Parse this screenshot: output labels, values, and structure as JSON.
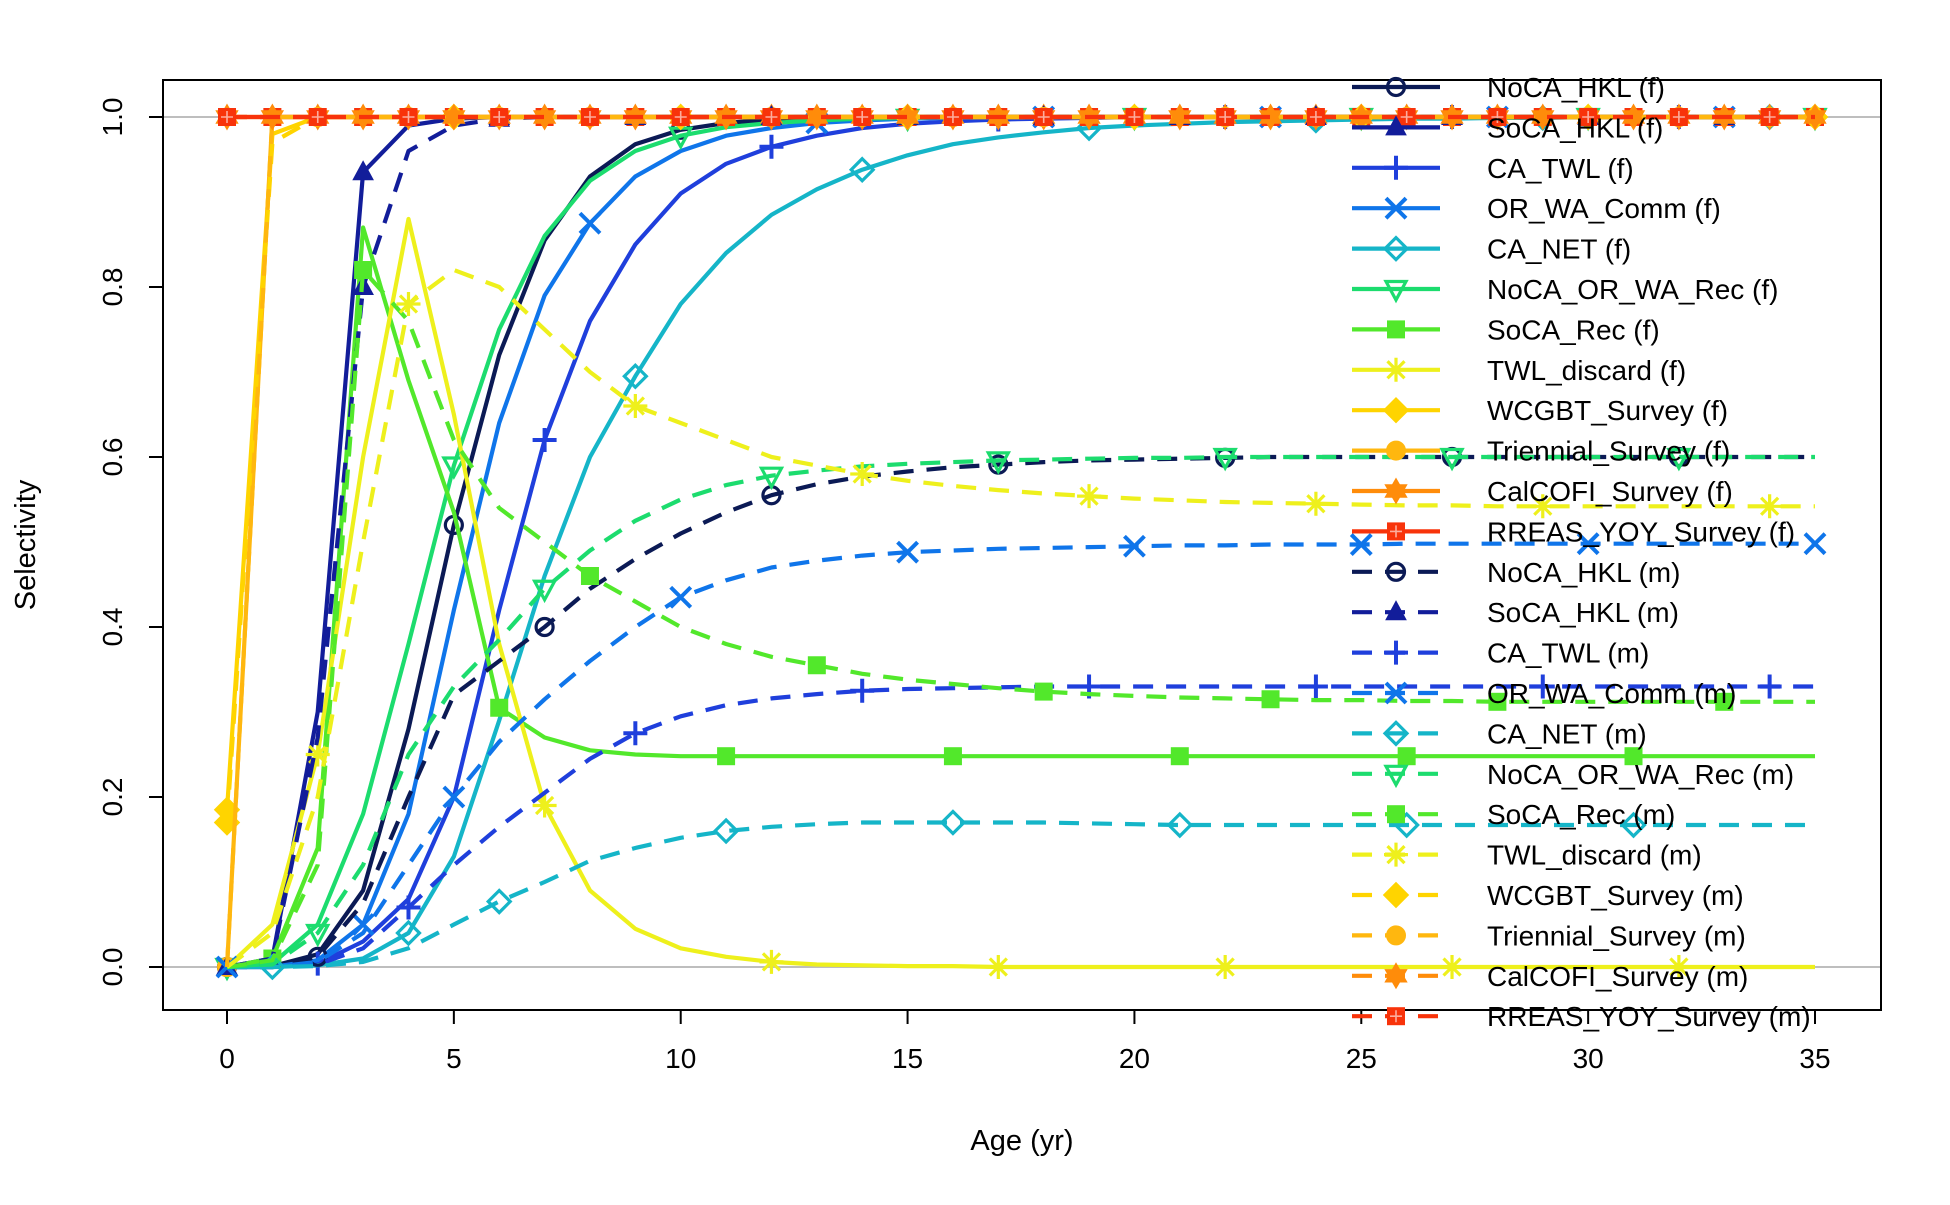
{
  "chart_data": {
    "type": "line",
    "title": "",
    "xlabel": "Age (yr)",
    "ylabel": "Selectivity",
    "xlim": [
      0,
      35
    ],
    "ylim": [
      0,
      1
    ],
    "x_ticks": [
      "0",
      "5",
      "10",
      "15",
      "20",
      "25",
      "30",
      "35"
    ],
    "y_ticks": [
      "0.0",
      "0.2",
      "0.4",
      "0.6",
      "0.8",
      "1.0"
    ],
    "reference_lines": [
      0,
      1
    ],
    "legend_position": "top-right",
    "x": [
      0,
      1,
      2,
      3,
      4,
      5,
      6,
      7,
      8,
      9,
      10,
      11,
      12,
      13,
      14,
      15,
      16,
      17,
      18,
      19,
      20,
      21,
      22,
      23,
      24,
      25,
      26,
      27,
      28,
      29,
      30,
      31,
      32,
      33,
      34,
      35
    ],
    "series": [
      {
        "name": "NoCA_HKL (f)",
        "color": "#0b1a55",
        "dash": "solid",
        "marker": "circle-open",
        "marker_every": 5,
        "marker_offset": 0,
        "values": [
          0,
          0.001,
          0.015,
          0.09,
          0.28,
          0.52,
          0.72,
          0.855,
          0.93,
          0.968,
          0.985,
          0.993,
          0.997,
          0.999,
          1,
          1,
          1,
          1,
          1,
          1,
          1,
          1,
          1,
          1,
          1,
          1,
          1,
          1,
          1,
          1,
          1,
          1,
          1,
          1,
          1,
          1
        ]
      },
      {
        "name": "SoCA_HKL (f)",
        "color": "#121d9a",
        "dash": "solid",
        "marker": "triangle-up",
        "marker_every": 3,
        "marker_offset": 0,
        "values": [
          0,
          0.01,
          0.3,
          0.935,
          0.99,
          0.998,
          1,
          1,
          1,
          1,
          1,
          1,
          1,
          1,
          1,
          1,
          1,
          1,
          1,
          1,
          1,
          1,
          1,
          1,
          1,
          1,
          1,
          1,
          1,
          1,
          1,
          1,
          1,
          1,
          1,
          1
        ]
      },
      {
        "name": "CA_TWL (f)",
        "color": "#1f3fdc",
        "dash": "solid",
        "marker": "plus",
        "marker_every": 5,
        "marker_offset": 2,
        "values": [
          0,
          0,
          0.004,
          0.03,
          0.08,
          0.2,
          0.42,
          0.62,
          0.76,
          0.85,
          0.91,
          0.945,
          0.965,
          0.978,
          0.987,
          0.992,
          0.995,
          0.997,
          0.998,
          0.999,
          1,
          1,
          1,
          1,
          1,
          1,
          1,
          1,
          1,
          1,
          1,
          1,
          1,
          1,
          1,
          1
        ]
      },
      {
        "name": "OR_WA_Comm (f)",
        "color": "#0f75ea",
        "dash": "solid",
        "marker": "x",
        "marker_every": 5,
        "marker_offset": 3,
        "values": [
          0,
          0,
          0.008,
          0.05,
          0.18,
          0.42,
          0.64,
          0.79,
          0.875,
          0.93,
          0.96,
          0.978,
          0.987,
          0.993,
          0.996,
          0.998,
          0.999,
          1,
          1,
          1,
          1,
          1,
          1,
          1,
          1,
          1,
          1,
          1,
          1,
          1,
          1,
          1,
          1,
          1,
          1,
          1
        ]
      },
      {
        "name": "CA_NET (f)",
        "color": "#15b5c8",
        "dash": "solid",
        "marker": "diamond-open",
        "marker_every": 5,
        "marker_offset": 4,
        "values": [
          0,
          0,
          0.002,
          0.01,
          0.04,
          0.13,
          0.29,
          0.46,
          0.6,
          0.695,
          0.78,
          0.84,
          0.885,
          0.915,
          0.938,
          0.955,
          0.968,
          0.976,
          0.982,
          0.987,
          0.99,
          0.992,
          0.994,
          0.995,
          0.996,
          0.997,
          0.998,
          0.998,
          0.999,
          0.999,
          1,
          1,
          1,
          1,
          1,
          1
        ]
      },
      {
        "name": "NoCA_OR_WA_Rec (f)",
        "color": "#1cdc6e",
        "dash": "solid",
        "marker": "triangle-down-open",
        "marker_every": 5,
        "marker_offset": 0,
        "values": [
          0,
          0.004,
          0.05,
          0.18,
          0.38,
          0.59,
          0.75,
          0.86,
          0.925,
          0.96,
          0.978,
          0.988,
          0.993,
          0.996,
          0.998,
          0.999,
          1,
          1,
          1,
          1,
          1,
          1,
          1,
          1,
          1,
          1,
          1,
          1,
          1,
          1,
          1,
          1,
          1,
          1,
          1,
          1
        ]
      },
      {
        "name": "SoCA_Rec (f)",
        "color": "#52e82b",
        "dash": "solid",
        "marker": "square",
        "marker_every": 5,
        "marker_offset": 1,
        "values": [
          0,
          0.01,
          0.14,
          0.87,
          0.69,
          0.535,
          0.305,
          0.27,
          0.255,
          0.25,
          0.248,
          0.248,
          0.248,
          0.248,
          0.248,
          0.248,
          0.248,
          0.248,
          0.248,
          0.248,
          0.248,
          0.248,
          0.248,
          0.248,
          0.248,
          0.248,
          0.248,
          0.248,
          0.248,
          0.248,
          0.248,
          0.248,
          0.248,
          0.248,
          0.248,
          0.248
        ]
      },
      {
        "name": "TWL_discard (f)",
        "color": "#eef01c",
        "dash": "solid",
        "marker": "asterisk",
        "marker_every": 5,
        "marker_offset": 2,
        "values": [
          0,
          0.05,
          0.25,
          0.6,
          0.88,
          0.65,
          0.38,
          0.19,
          0.09,
          0.045,
          0.022,
          0.012,
          0.006,
          0.003,
          0.002,
          0.001,
          0.001,
          0,
          0,
          0,
          0,
          0,
          0,
          0,
          0,
          0,
          0,
          0,
          0,
          0,
          0,
          0,
          0,
          0,
          0,
          0
        ]
      },
      {
        "name": "WCGBT_Survey (f)",
        "color": "#ffd400",
        "dash": "solid",
        "marker": "diamond",
        "marker_every": 5,
        "marker_offset": 0,
        "values": [
          0.185,
          0.98,
          1,
          1,
          1,
          1,
          1,
          1,
          1,
          1,
          1,
          1,
          1,
          1,
          1,
          1,
          1,
          1,
          1,
          1,
          1,
          1,
          1,
          1,
          1,
          1,
          1,
          1,
          1,
          1,
          1,
          1,
          1,
          1,
          1,
          1
        ]
      },
      {
        "name": "Triennial_Survey (f)",
        "color": "#ffb70f",
        "dash": "solid",
        "marker": "circle",
        "marker_every": 4,
        "marker_offset": 0,
        "values": [
          0,
          1,
          1,
          1,
          1,
          1,
          1,
          1,
          1,
          1,
          1,
          1,
          1,
          1,
          1,
          1,
          1,
          1,
          1,
          1,
          1,
          1,
          1,
          1,
          1,
          1,
          1,
          1,
          1,
          1,
          1,
          1,
          1,
          1,
          1,
          1
        ]
      },
      {
        "name": "CalCOFI_Survey (f)",
        "color": "#ff8c0a",
        "dash": "solid",
        "marker": "hexagram",
        "marker_every": 2,
        "marker_offset": 0,
        "values": [
          1,
          1,
          1,
          1,
          1,
          1,
          1,
          1,
          1,
          1,
          1,
          1,
          1,
          1,
          1,
          1,
          1,
          1,
          1,
          1,
          1,
          1,
          1,
          1,
          1,
          1,
          1,
          1,
          1,
          1,
          1,
          1,
          1,
          1,
          1,
          1
        ]
      },
      {
        "name": "RREAS_YOY_Survey (f)",
        "color": "#f8330a",
        "dash": "solid",
        "marker": "square-plus",
        "marker_every": 2,
        "marker_offset": 1,
        "values": [
          1,
          1,
          1,
          1,
          1,
          1,
          1,
          1,
          1,
          1,
          1,
          1,
          1,
          1,
          1,
          1,
          1,
          1,
          1,
          1,
          1,
          1,
          1,
          1,
          1,
          1,
          1,
          1,
          1,
          1,
          1,
          1,
          1,
          1,
          1,
          1
        ]
      },
      {
        "name": "NoCA_HKL (m)",
        "color": "#0b1a55",
        "dash": "dashed",
        "marker": "circle-open",
        "marker_every": 5,
        "marker_offset": 2,
        "values": [
          0,
          0.001,
          0.012,
          0.075,
          0.2,
          0.32,
          0.36,
          0.4,
          0.445,
          0.48,
          0.51,
          0.535,
          0.555,
          0.568,
          0.577,
          0.583,
          0.588,
          0.591,
          0.594,
          0.596,
          0.597,
          0.598,
          0.599,
          0.6,
          0.6,
          0.6,
          0.6,
          0.6,
          0.6,
          0.6,
          0.6,
          0.6,
          0.6,
          0.6,
          0.6,
          0.6
        ]
      },
      {
        "name": "SoCA_HKL (m)",
        "color": "#121d9a",
        "dash": "dashed",
        "marker": "triangle-up",
        "marker_every": 3,
        "marker_offset": 0,
        "values": [
          0,
          0.01,
          0.27,
          0.8,
          0.96,
          0.99,
          0.998,
          1,
          1,
          1,
          1,
          1,
          1,
          1,
          1,
          1,
          1,
          1,
          1,
          1,
          1,
          1,
          1,
          1,
          1,
          1,
          1,
          1,
          1,
          1,
          1,
          1,
          1,
          1,
          1,
          1
        ]
      },
      {
        "name": "CA_TWL (m)",
        "color": "#1f3fdc",
        "dash": "dashed",
        "marker": "plus",
        "marker_every": 5,
        "marker_offset": 4,
        "values": [
          0,
          0,
          0.003,
          0.022,
          0.07,
          0.12,
          0.165,
          0.205,
          0.245,
          0.275,
          0.295,
          0.308,
          0.316,
          0.321,
          0.325,
          0.327,
          0.328,
          0.329,
          0.33,
          0.33,
          0.33,
          0.33,
          0.33,
          0.33,
          0.33,
          0.33,
          0.33,
          0.33,
          0.33,
          0.33,
          0.33,
          0.33,
          0.33,
          0.33,
          0.33,
          0.33
        ]
      },
      {
        "name": "OR_WA_Comm (m)",
        "color": "#0f75ea",
        "dash": "dashed",
        "marker": "x",
        "marker_every": 5,
        "marker_offset": 0,
        "values": [
          0,
          0,
          0.006,
          0.04,
          0.12,
          0.2,
          0.265,
          0.315,
          0.36,
          0.4,
          0.435,
          0.455,
          0.47,
          0.478,
          0.484,
          0.488,
          0.49,
          0.492,
          0.493,
          0.494,
          0.495,
          0.496,
          0.496,
          0.497,
          0.497,
          0.497,
          0.498,
          0.498,
          0.498,
          0.498,
          0.498,
          0.498,
          0.498,
          0.498,
          0.498,
          0.498
        ]
      },
      {
        "name": "CA_NET (m)",
        "color": "#15b5c8",
        "dash": "dashed",
        "marker": "diamond-open",
        "marker_every": 5,
        "marker_offset": 1,
        "values": [
          0,
          0,
          0.001,
          0.006,
          0.022,
          0.05,
          0.077,
          0.1,
          0.125,
          0.14,
          0.152,
          0.16,
          0.165,
          0.168,
          0.17,
          0.17,
          0.17,
          0.17,
          0.17,
          0.169,
          0.168,
          0.167,
          0.167,
          0.167,
          0.167,
          0.167,
          0.167,
          0.167,
          0.167,
          0.167,
          0.167,
          0.167,
          0.167,
          0.167,
          0.167,
          0.167
        ]
      },
      {
        "name": "NoCA_OR_WA_Rec (m)",
        "color": "#1cdc6e",
        "dash": "dashed",
        "marker": "triangle-down-open",
        "marker_every": 5,
        "marker_offset": 2,
        "values": [
          0,
          0.003,
          0.04,
          0.12,
          0.25,
          0.33,
          0.385,
          0.445,
          0.49,
          0.525,
          0.55,
          0.567,
          0.578,
          0.584,
          0.589,
          0.592,
          0.594,
          0.596,
          0.597,
          0.598,
          0.599,
          0.599,
          0.6,
          0.6,
          0.6,
          0.6,
          0.6,
          0.6,
          0.6,
          0.6,
          0.6,
          0.6,
          0.6,
          0.6,
          0.6,
          0.6
        ]
      },
      {
        "name": "SoCA_Rec (m)",
        "color": "#52e82b",
        "dash": "dashed",
        "marker": "square",
        "marker_every": 5,
        "marker_offset": 3,
        "values": [
          0,
          0.008,
          0.12,
          0.82,
          0.76,
          0.62,
          0.54,
          0.5,
          0.46,
          0.43,
          0.4,
          0.38,
          0.365,
          0.355,
          0.345,
          0.338,
          0.333,
          0.328,
          0.324,
          0.321,
          0.319,
          0.317,
          0.316,
          0.315,
          0.314,
          0.314,
          0.313,
          0.313,
          0.312,
          0.312,
          0.312,
          0.312,
          0.312,
          0.312,
          0.312,
          0.312
        ]
      },
      {
        "name": "TWL_discard (m)",
        "color": "#eef01c",
        "dash": "dashed",
        "marker": "asterisk",
        "marker_every": 5,
        "marker_offset": 4,
        "values": [
          0,
          0.04,
          0.2,
          0.5,
          0.78,
          0.82,
          0.8,
          0.75,
          0.7,
          0.66,
          0.64,
          0.62,
          0.6,
          0.59,
          0.58,
          0.572,
          0.566,
          0.561,
          0.557,
          0.554,
          0.551,
          0.549,
          0.547,
          0.546,
          0.545,
          0.544,
          0.543,
          0.543,
          0.542,
          0.542,
          0.542,
          0.542,
          0.542,
          0.542,
          0.542,
          0.542
        ]
      },
      {
        "name": "WCGBT_Survey (m)",
        "color": "#ffd400",
        "dash": "dashed",
        "marker": "diamond",
        "marker_every": 5,
        "marker_offset": 0,
        "values": [
          0.17,
          0.97,
          1,
          1,
          1,
          1,
          1,
          1,
          1,
          1,
          1,
          1,
          1,
          1,
          1,
          1,
          1,
          1,
          1,
          1,
          1,
          1,
          1,
          1,
          1,
          1,
          1,
          1,
          1,
          1,
          1,
          1,
          1,
          1,
          1,
          1
        ]
      },
      {
        "name": "Triennial_Survey (m)",
        "color": "#ffb70f",
        "dash": "dashed",
        "marker": "circle",
        "marker_every": 4,
        "marker_offset": 2,
        "values": [
          0,
          1,
          1,
          1,
          1,
          1,
          1,
          1,
          1,
          1,
          1,
          1,
          1,
          1,
          1,
          1,
          1,
          1,
          1,
          1,
          1,
          1,
          1,
          1,
          1,
          1,
          1,
          1,
          1,
          1,
          1,
          1,
          1,
          1,
          1,
          1
        ]
      },
      {
        "name": "CalCOFI_Survey (m)",
        "color": "#ff8c0a",
        "dash": "dashed",
        "marker": "hexagram",
        "marker_every": 2,
        "marker_offset": 1,
        "values": [
          1,
          1,
          1,
          1,
          1,
          1,
          1,
          1,
          1,
          1,
          1,
          1,
          1,
          1,
          1,
          1,
          1,
          1,
          1,
          1,
          1,
          1,
          1,
          1,
          1,
          1,
          1,
          1,
          1,
          1,
          1,
          1,
          1,
          1,
          1,
          1
        ]
      },
      {
        "name": "RREAS_YOY_Survey (m)",
        "color": "#f8330a",
        "dash": "dashed",
        "marker": "square-plus",
        "marker_every": 2,
        "marker_offset": 0,
        "values": [
          1,
          1,
          1,
          1,
          1,
          1,
          1,
          1,
          1,
          1,
          1,
          1,
          1,
          1,
          1,
          1,
          1,
          1,
          1,
          1,
          1,
          1,
          1,
          1,
          1,
          1,
          1,
          1,
          1,
          1,
          1,
          1,
          1,
          1,
          1,
          1
        ]
      }
    ]
  }
}
